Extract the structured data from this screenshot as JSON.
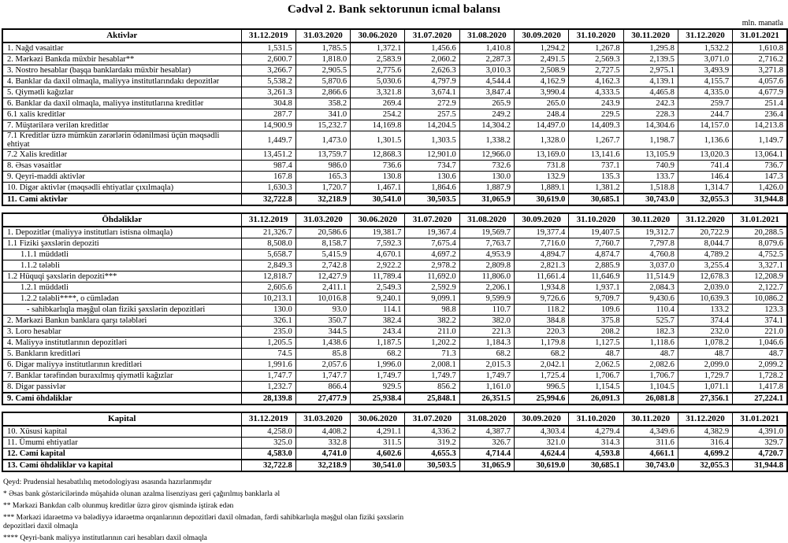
{
  "title": "Cədvəl 2. Bank sektorunun icmal balansı",
  "unit_note": "mln. manatla",
  "columns": [
    "31.12.2019",
    "31.03.2020",
    "30.06.2020",
    "31.07.2020",
    "31.08.2020",
    "30.09.2020",
    "31.10.2020",
    "30.11.2020",
    "31.12.2020",
    "31.01.2021"
  ],
  "sections": [
    {
      "id": "assets",
      "header": "Aktivlər",
      "rows": [
        {
          "label": "1. Nağd vəsaitlər",
          "indent": 0,
          "values": [
            "1,531.5",
            "1,785.5",
            "1,372.1",
            "1,456.6",
            "1,410.8",
            "1,294.2",
            "1,267.8",
            "1,295.8",
            "1,532.2",
            "1,610.8"
          ]
        },
        {
          "label": "2. Mərkəzi Bankda müxbir hesablar**",
          "indent": 0,
          "values": [
            "2,600.7",
            "1,818.0",
            "2,583.9",
            "2,060.2",
            "2,287.3",
            "2,491.5",
            "2,569.3",
            "2,139.5",
            "3,071.0",
            "2,716.2"
          ]
        },
        {
          "label": "3. Nostro hesablar (başqa banklardakı müxbir hesablar)",
          "indent": 0,
          "values": [
            "3,266.7",
            "2,905.5",
            "2,775.6",
            "2,626.3",
            "3,010.3",
            "2,508.9",
            "2,727.5",
            "2,975.1",
            "3,493.9",
            "3,271.8"
          ]
        },
        {
          "label": "4. Banklar da daxil olmaqla, maliyyə institutlarındakı depozitlər",
          "indent": 0,
          "values": [
            "5,538.2",
            "5,870.6",
            "5,030.6",
            "4,797.9",
            "4,544.4",
            "4,162.9",
            "4,162.3",
            "4,139.1",
            "4,155.7",
            "4,057.6"
          ]
        },
        {
          "label": "5. Qiymətli kağızlar",
          "indent": 0,
          "values": [
            "3,261.3",
            "2,866.6",
            "3,321.8",
            "3,674.1",
            "3,847.4",
            "3,990.4",
            "4,333.5",
            "4,465.8",
            "4,335.0",
            "4,677.9"
          ]
        },
        {
          "label": "6. Banklar da daxil olmaqla, maliyyə institutlarına kreditlər",
          "indent": 0,
          "values": [
            "304.8",
            "358.2",
            "269.4",
            "272.9",
            "265.9",
            "265.0",
            "243.9",
            "242.3",
            "259.7",
            "251.4"
          ]
        },
        {
          "label": "6.1 xalis kreditlər",
          "indent": 0,
          "values": [
            "287.7",
            "341.0",
            "254.2",
            "257.5",
            "249.2",
            "248.4",
            "229.5",
            "228.3",
            "244.7",
            "236.4"
          ]
        },
        {
          "label": "7. Müştərilərə verilən kreditlər",
          "indent": 0,
          "values": [
            "14,900.9",
            "15,232.7",
            "14,169.8",
            "14,204.5",
            "14,304.2",
            "14,497.0",
            "14,409.3",
            "14,304.6",
            "14,157.0",
            "14,213.8"
          ]
        },
        {
          "label": "7.1 Kreditlər üzrə mümkün zərərlərin ödənilməsi üçün məqsədli ehtiyat",
          "indent": 0,
          "tall": true,
          "values": [
            "1,449.7",
            "1,473.0",
            "1,301.5",
            "1,303.5",
            "1,338.2",
            "1,328.0",
            "1,267.7",
            "1,198.7",
            "1,136.6",
            "1,149.7"
          ]
        },
        {
          "label": "7.2 Xalis kreditlər",
          "indent": 0,
          "values": [
            "13,451.2",
            "13,759.7",
            "12,868.3",
            "12,901.0",
            "12,966.0",
            "13,169.0",
            "13,141.6",
            "13,105.9",
            "13,020.3",
            "13,064.1"
          ]
        },
        {
          "label": "8.  Əsas vəsaitlər",
          "indent": 0,
          "values": [
            "987.4",
            "986.0",
            "736.6",
            "734.7",
            "732.6",
            "731.8",
            "737.1",
            "740.9",
            "741.4",
            "736.7"
          ]
        },
        {
          "label": "9. Qeyri-maddi aktivlər",
          "indent": 0,
          "values": [
            "167.8",
            "165.3",
            "130.8",
            "130.6",
            "130.0",
            "132.9",
            "135.3",
            "133.7",
            "146.4",
            "147.3"
          ]
        },
        {
          "label": "10. Digər aktivlər (məqsədli ehtiyatlar çıxılmaqla)",
          "indent": 0,
          "values": [
            "1,630.3",
            "1,720.7",
            "1,467.1",
            "1,864.6",
            "1,887.9",
            "1,889.1",
            "1,381.2",
            "1,518.8",
            "1,314.7",
            "1,426.0"
          ]
        },
        {
          "label": "11. Cəmi aktivlər",
          "indent": 0,
          "bold": true,
          "total": true,
          "values": [
            "32,722.8",
            "32,218.9",
            "30,541.0",
            "30,503.5",
            "31,065.9",
            "30,619.0",
            "30,685.1",
            "30,743.0",
            "32,055.3",
            "31,944.8"
          ]
        }
      ]
    },
    {
      "id": "liabilities",
      "header": "Öhdəliklər",
      "rows": [
        {
          "label": "1. Depozitlər (maliyyə institutları istisna olmaqla)",
          "indent": 0,
          "values": [
            "21,326.7",
            "20,586.6",
            "19,381.7",
            "19,367.4",
            "19,569.7",
            "19,377.4",
            "19,407.5",
            "19,312.7",
            "20,722.9",
            "20,288.5"
          ]
        },
        {
          "label": "1.1 Fiziki şəxslərin depoziti",
          "indent": 0,
          "values": [
            "8,508.0",
            "8,158.7",
            "7,592.3",
            "7,675.4",
            "7,763.7",
            "7,716.0",
            "7,760.7",
            "7,797.8",
            "8,044.7",
            "8,079.6"
          ]
        },
        {
          "label": "1.1.1 müddətli",
          "indent": 1,
          "values": [
            "5,658.7",
            "5,415.9",
            "4,670.1",
            "4,697.2",
            "4,953.9",
            "4,894.7",
            "4,874.7",
            "4,760.8",
            "4,789.2",
            "4,752.5"
          ]
        },
        {
          "label": "1.1.2 tələbli",
          "indent": 1,
          "values": [
            "2,849.3",
            "2,742.8",
            "2,922.2",
            "2,978.2",
            "2,809.8",
            "2,821.3",
            "2,885.9",
            "3,037.0",
            "3,255.4",
            "3,327.1"
          ]
        },
        {
          "label": "1.2 Hüquqi şəxslərin depoziti***",
          "indent": 0,
          "values": [
            "12,818.7",
            "12,427.9",
            "11,789.4",
            "11,692.0",
            "11,806.0",
            "11,661.4",
            "11,646.9",
            "11,514.9",
            "12,678.3",
            "12,208.9"
          ]
        },
        {
          "label": "1.2.1 müddətli",
          "indent": 1,
          "values": [
            "2,605.6",
            "2,411.1",
            "2,549.3",
            "2,592.9",
            "2,206.1",
            "1,934.8",
            "1,937.1",
            "2,084.3",
            "2,039.0",
            "2,122.7"
          ]
        },
        {
          "label": "1.2.2 tələbli****, o cümlədən",
          "indent": 1,
          "values": [
            "10,213.1",
            "10,016.8",
            "9,240.1",
            "9,099.1",
            "9,599.9",
            "9,726.6",
            "9,709.7",
            "9,430.6",
            "10,639.3",
            "10,086.2"
          ]
        },
        {
          "label": "- sahibkarlıqla məşğul olan fiziki şəxslərin depozitləri",
          "indent": 2,
          "values": [
            "130.0",
            "93.0",
            "114.1",
            "98.8",
            "110.7",
            "118.2",
            "109.6",
            "110.4",
            "133.2",
            "123.3"
          ]
        },
        {
          "label": "2. Mərkəzi Bankın banklara qarşı tələbləri",
          "indent": 0,
          "values": [
            "326.1",
            "350.7",
            "382.4",
            "382.2",
            "382.0",
            "384.8",
            "375.8",
            "525.7",
            "374.4",
            "374.1"
          ]
        },
        {
          "label": "3. Loro hesablar",
          "indent": 0,
          "values": [
            "235.0",
            "344.5",
            "243.4",
            "211.0",
            "221.3",
            "220.3",
            "208.2",
            "182.3",
            "232.0",
            "221.0"
          ]
        },
        {
          "label": "4. Maliyyə institutlarının  depozitləri",
          "indent": 0,
          "values": [
            "1,205.5",
            "1,438.6",
            "1,187.5",
            "1,202.2",
            "1,184.3",
            "1,179.8",
            "1,127.5",
            "1,118.6",
            "1,078.2",
            "1,046.6"
          ]
        },
        {
          "label": "5. Bankların kreditləri",
          "indent": 0,
          "values": [
            "74.5",
            "85.8",
            "68.2",
            "71.3",
            "68.2",
            "68.2",
            "48.7",
            "48.7",
            "48.7",
            "48.7"
          ]
        },
        {
          "label": "6. Digər maliyyə institutlarının kreditləri",
          "indent": 0,
          "values": [
            "1,991.6",
            "2,057.6",
            "1,996.0",
            "2,008.1",
            "2,015.3",
            "2,042.1",
            "2,062.5",
            "2,082.6",
            "2,099.0",
            "2,099.2"
          ]
        },
        {
          "label": "7. Banklar tərəfindən buraxılmış qiymətli kağızlar",
          "indent": 0,
          "values": [
            "1,747.7",
            "1,747.7",
            "1,749.7",
            "1,749.7",
            "1,749.7",
            "1,725.4",
            "1,706.7",
            "1,706.7",
            "1,729.7",
            "1,728.2"
          ]
        },
        {
          "label": "8. Digər passivlər",
          "indent": 0,
          "values": [
            "1,232.7",
            "866.4",
            "929.5",
            "856.2",
            "1,161.0",
            "996.5",
            "1,154.5",
            "1,104.5",
            "1,071.1",
            "1,417.8"
          ]
        },
        {
          "label": "9. Cəmi öhdəliklər",
          "indent": 0,
          "bold": true,
          "total": true,
          "values": [
            "28,139.8",
            "27,477.9",
            "25,938.4",
            "25,848.1",
            "26,351.5",
            "25,994.6",
            "26,091.3",
            "26,081.8",
            "27,356.1",
            "27,224.1"
          ]
        }
      ]
    },
    {
      "id": "capital",
      "header": "Kapital",
      "rows": [
        {
          "label": "10. Xüsusi kapital",
          "indent": 0,
          "values": [
            "4,258.0",
            "4,408.2",
            "4,291.1",
            "4,336.2",
            "4,387.7",
            "4,303.4",
            "4,279.4",
            "4,349.6",
            "4,382.9",
            "4,391.0"
          ]
        },
        {
          "label": "11. Ümumi ehtiyatlar",
          "indent": 0,
          "values": [
            "325.0",
            "332.8",
            "311.5",
            "319.2",
            "326.7",
            "321.0",
            "314.3",
            "311.6",
            "316.4",
            "329.7"
          ]
        },
        {
          "label": "12. Cəmi kapital",
          "indent": 0,
          "bold": true,
          "values": [
            "4,583.0",
            "4,741.0",
            "4,602.6",
            "4,655.3",
            "4,714.4",
            "4,624.4",
            "4,593.8",
            "4,661.1",
            "4,699.2",
            "4,720.7"
          ]
        },
        {
          "label": "13. Cəmi öhdəliklər və kapital",
          "indent": 0,
          "bold": true,
          "total": true,
          "values": [
            "32,722.8",
            "32,218.9",
            "30,541.0",
            "30,503.5",
            "31,065.9",
            "30,619.0",
            "30,685.1",
            "30,743.0",
            "32,055.3",
            "31,944.8"
          ]
        }
      ]
    }
  ],
  "footnotes": [
    {
      "text": "Qeyd: Prudensial hesabatlılıq metodologiyası əsasında hazırlanmışdır",
      "wrap": false
    },
    {
      "text": "* Əsas bank göstəricilərində müşahidə olunan azalma lisenziyası geri çağırılmış banklarla əl",
      "wrap": false
    },
    {
      "text": "** Mərkəzi Bankdan cəlb olunmuş kreditlər üzrə girov qismində iştirak edən",
      "wrap": false
    },
    {
      "text": "*** Mərkəzi idarəetmə və bələdiyyə idarəetmə orqanlarının depozitləri daxil olmadan, fərdi sahibkarlıqla məşğul olan fiziki şəxslərin depozitləri daxil olmaqla",
      "wrap": true
    },
    {
      "text": "**** Qeyri-bank maliyyə institutlarının cari hesabları daxil olmaqla",
      "wrap": false
    }
  ]
}
